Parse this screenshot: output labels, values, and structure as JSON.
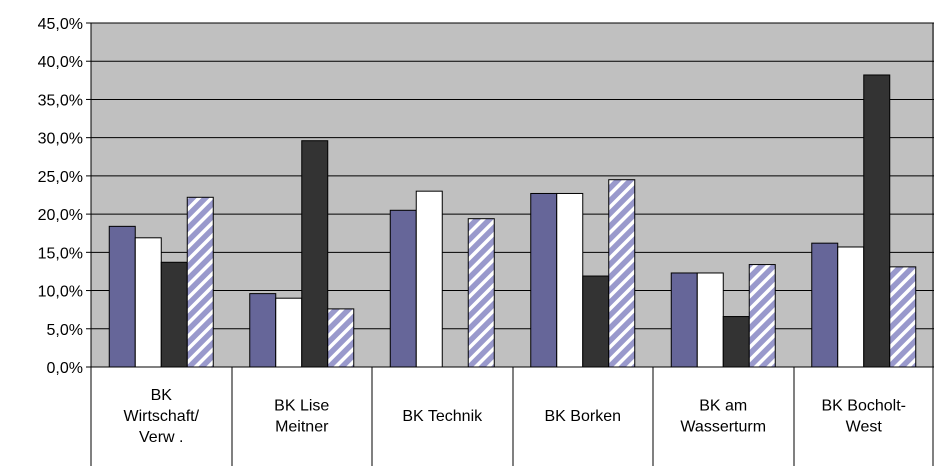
{
  "chart_data": {
    "type": "bar",
    "title": "",
    "xlabel": "",
    "ylabel": "",
    "ylim": [
      0,
      45
    ],
    "y_tick_step": 5,
    "y_tick_labels": [
      "0,0%",
      "5,0%",
      "10,0%",
      "15,0%",
      "20,0%",
      "25,0%",
      "30,0%",
      "35,0%",
      "40,0%",
      "45,0%"
    ],
    "grid": true,
    "legend": "none",
    "plot_background": "#c0c0c0",
    "categories": [
      [
        "BK",
        "Wirtschaft/",
        "Verw ."
      ],
      [
        "BK Lise",
        "Meitner"
      ],
      [
        "BK Technik"
      ],
      [
        "BK Borken"
      ],
      [
        "BK am",
        "Wasserturm"
      ],
      [
        "BK Bocholt-",
        "West"
      ]
    ],
    "series": [
      {
        "fill": "#666699",
        "pattern": "solid",
        "values": [
          18.4,
          9.6,
          20.5,
          22.7,
          12.3,
          16.2
        ]
      },
      {
        "fill": "#ffffff",
        "pattern": "solid",
        "values": [
          16.9,
          9.0,
          23.0,
          22.7,
          12.3,
          15.7
        ]
      },
      {
        "fill": "#333333",
        "pattern": "solid",
        "values": [
          13.7,
          29.6,
          0.0,
          11.9,
          6.6,
          38.2
        ]
      },
      {
        "fill": "#9999cc",
        "pattern": "diagonal-stripes",
        "stripe_color": "#ffffff",
        "values": [
          22.2,
          7.6,
          19.4,
          24.5,
          13.4,
          13.1
        ]
      }
    ]
  }
}
